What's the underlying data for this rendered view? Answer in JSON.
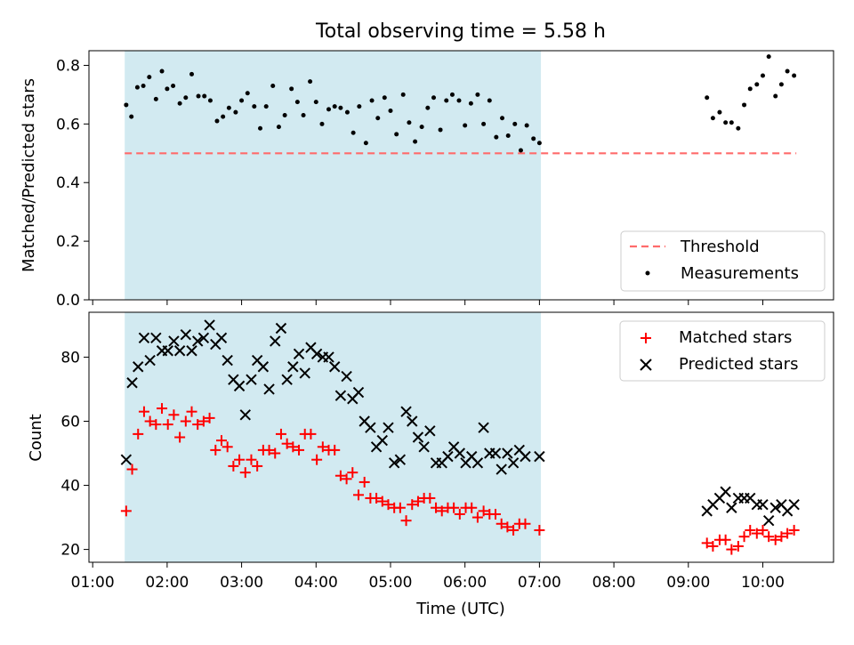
{
  "chart_data": [
    {
      "type": "scatter",
      "title": "Total observing time = 5.58 h",
      "ylabel": "Matched/Predicted stars",
      "xlabel": "",
      "ylim": [
        0,
        0.85
      ],
      "yticks": [
        "0.0",
        "0.2",
        "0.4",
        "0.6",
        "0.8"
      ],
      "xlim_hours": [
        0.95,
        10.95
      ],
      "shaded_range_hours": [
        1.43,
        7.02
      ],
      "shade_color": "#add8e6",
      "legend_position": "lower-right",
      "threshold": {
        "name": "Threshold",
        "value": 0.5,
        "x_range_hours": [
          1.43,
          10.45
        ],
        "color": "#ff6b6b",
        "style": "dashed"
      },
      "series": [
        {
          "name": "Measurements",
          "marker": "dot",
          "color": "#000000",
          "points": [
            [
              1.45,
              0.665
            ],
            [
              1.52,
              0.625
            ],
            [
              1.6,
              0.725
            ],
            [
              1.68,
              0.73
            ],
            [
              1.76,
              0.76
            ],
            [
              1.85,
              0.685
            ],
            [
              1.93,
              0.78
            ],
            [
              2.0,
              0.72
            ],
            [
              2.08,
              0.73
            ],
            [
              2.17,
              0.67
            ],
            [
              2.25,
              0.69
            ],
            [
              2.33,
              0.77
            ],
            [
              2.42,
              0.695
            ],
            [
              2.5,
              0.695
            ],
            [
              2.58,
              0.68
            ],
            [
              2.67,
              0.61
            ],
            [
              2.75,
              0.625
            ],
            [
              2.83,
              0.655
            ],
            [
              2.92,
              0.64
            ],
            [
              3.0,
              0.68
            ],
            [
              3.08,
              0.705
            ],
            [
              3.17,
              0.66
            ],
            [
              3.25,
              0.585
            ],
            [
              3.33,
              0.66
            ],
            [
              3.42,
              0.73
            ],
            [
              3.5,
              0.59
            ],
            [
              3.58,
              0.63
            ],
            [
              3.67,
              0.72
            ],
            [
              3.75,
              0.675
            ],
            [
              3.83,
              0.63
            ],
            [
              3.92,
              0.745
            ],
            [
              4.0,
              0.675
            ],
            [
              4.08,
              0.6
            ],
            [
              4.17,
              0.65
            ],
            [
              4.25,
              0.66
            ],
            [
              4.33,
              0.655
            ],
            [
              4.42,
              0.64
            ],
            [
              4.5,
              0.57
            ],
            [
              4.58,
              0.66
            ],
            [
              4.67,
              0.535
            ],
            [
              4.75,
              0.68
            ],
            [
              4.83,
              0.62
            ],
            [
              4.92,
              0.69
            ],
            [
              5.0,
              0.645
            ],
            [
              5.08,
              0.565
            ],
            [
              5.17,
              0.7
            ],
            [
              5.25,
              0.605
            ],
            [
              5.33,
              0.54
            ],
            [
              5.42,
              0.59
            ],
            [
              5.5,
              0.655
            ],
            [
              5.58,
              0.69
            ],
            [
              5.67,
              0.58
            ],
            [
              5.75,
              0.68
            ],
            [
              5.83,
              0.7
            ],
            [
              5.92,
              0.68
            ],
            [
              6.0,
              0.595
            ],
            [
              6.08,
              0.67
            ],
            [
              6.17,
              0.7
            ],
            [
              6.25,
              0.6
            ],
            [
              6.33,
              0.68
            ],
            [
              6.42,
              0.555
            ],
            [
              6.5,
              0.62
            ],
            [
              6.58,
              0.56
            ],
            [
              6.67,
              0.6
            ],
            [
              6.75,
              0.51
            ],
            [
              6.83,
              0.595
            ],
            [
              6.92,
              0.55
            ],
            [
              7.0,
              0.535
            ],
            [
              9.25,
              0.69
            ],
            [
              9.33,
              0.62
            ],
            [
              9.42,
              0.64
            ],
            [
              9.5,
              0.605
            ],
            [
              9.58,
              0.605
            ],
            [
              9.67,
              0.585
            ],
            [
              9.75,
              0.665
            ],
            [
              9.83,
              0.72
            ],
            [
              9.92,
              0.735
            ],
            [
              10.0,
              0.765
            ],
            [
              10.08,
              0.83
            ],
            [
              10.17,
              0.695
            ],
            [
              10.25,
              0.735
            ],
            [
              10.33,
              0.78
            ],
            [
              10.42,
              0.765
            ]
          ]
        }
      ]
    },
    {
      "type": "scatter",
      "title": "",
      "ylabel": "Count",
      "xlabel": "Time (UTC)",
      "ylim": [
        16,
        94
      ],
      "yticks": [
        "20",
        "40",
        "60",
        "80"
      ],
      "xlim_hours": [
        0.95,
        10.95
      ],
      "xticks": [
        "01:00",
        "02:00",
        "03:00",
        "04:00",
        "05:00",
        "06:00",
        "07:00",
        "08:00",
        "09:00",
        "10:00"
      ],
      "shaded_range_hours": [
        1.43,
        7.02
      ],
      "shade_color": "#add8e6",
      "legend_position": "top-right",
      "series": [
        {
          "name": "Matched stars",
          "marker": "plus",
          "color": "#ff0000",
          "points": [
            [
              1.45,
              32
            ],
            [
              1.53,
              45
            ],
            [
              1.61,
              56
            ],
            [
              1.69,
              63
            ],
            [
              1.77,
              60
            ],
            [
              1.85,
              59
            ],
            [
              1.93,
              64
            ],
            [
              2.01,
              59
            ],
            [
              2.09,
              62
            ],
            [
              2.17,
              55
            ],
            [
              2.25,
              60
            ],
            [
              2.33,
              63
            ],
            [
              2.41,
              59
            ],
            [
              2.49,
              60
            ],
            [
              2.57,
              61
            ],
            [
              2.65,
              51
            ],
            [
              2.73,
              54
            ],
            [
              2.81,
              52
            ],
            [
              2.89,
              46
            ],
            [
              2.97,
              48
            ],
            [
              3.05,
              44
            ],
            [
              3.13,
              48
            ],
            [
              3.21,
              46
            ],
            [
              3.29,
              51
            ],
            [
              3.37,
              51
            ],
            [
              3.45,
              50
            ],
            [
              3.53,
              56
            ],
            [
              3.61,
              53
            ],
            [
              3.69,
              52
            ],
            [
              3.77,
              51
            ],
            [
              3.85,
              56
            ],
            [
              3.93,
              56
            ],
            [
              4.01,
              48
            ],
            [
              4.09,
              52
            ],
            [
              4.17,
              51
            ],
            [
              4.25,
              51
            ],
            [
              4.33,
              43
            ],
            [
              4.41,
              42
            ],
            [
              4.49,
              44
            ],
            [
              4.57,
              37
            ],
            [
              4.65,
              41
            ],
            [
              4.73,
              36
            ],
            [
              4.81,
              36
            ],
            [
              4.89,
              35
            ],
            [
              4.97,
              34
            ],
            [
              5.05,
              33
            ],
            [
              5.13,
              33
            ],
            [
              5.21,
              29
            ],
            [
              5.29,
              34
            ],
            [
              5.37,
              35
            ],
            [
              5.45,
              36
            ],
            [
              5.53,
              36
            ],
            [
              5.61,
              33
            ],
            [
              5.69,
              32
            ],
            [
              5.77,
              33
            ],
            [
              5.85,
              33
            ],
            [
              5.93,
              31
            ],
            [
              6.01,
              33
            ],
            [
              6.09,
              33
            ],
            [
              6.17,
              30
            ],
            [
              6.25,
              32
            ],
            [
              6.33,
              31
            ],
            [
              6.41,
              31
            ],
            [
              6.49,
              28
            ],
            [
              6.57,
              27
            ],
            [
              6.65,
              26
            ],
            [
              6.73,
              28
            ],
            [
              6.81,
              28
            ],
            [
              7.0,
              26
            ],
            [
              9.25,
              22
            ],
            [
              9.33,
              21
            ],
            [
              9.42,
              23
            ],
            [
              9.5,
              23
            ],
            [
              9.58,
              20
            ],
            [
              9.67,
              21
            ],
            [
              9.75,
              24
            ],
            [
              9.83,
              26
            ],
            [
              9.92,
              25
            ],
            [
              10.0,
              26
            ],
            [
              10.08,
              24
            ],
            [
              10.17,
              23
            ],
            [
              10.25,
              24
            ],
            [
              10.33,
              25
            ],
            [
              10.42,
              26
            ]
          ]
        },
        {
          "name": "Predicted stars",
          "marker": "x",
          "color": "#000000",
          "points": [
            [
              1.45,
              48
            ],
            [
              1.53,
              72
            ],
            [
              1.61,
              77
            ],
            [
              1.69,
              86
            ],
            [
              1.77,
              79
            ],
            [
              1.85,
              86
            ],
            [
              1.93,
              82
            ],
            [
              2.01,
              82
            ],
            [
              2.09,
              85
            ],
            [
              2.17,
              82
            ],
            [
              2.25,
              87
            ],
            [
              2.33,
              82
            ],
            [
              2.41,
              85
            ],
            [
              2.49,
              86
            ],
            [
              2.57,
              90
            ],
            [
              2.65,
              84
            ],
            [
              2.73,
              86
            ],
            [
              2.81,
              79
            ],
            [
              2.89,
              73
            ],
            [
              2.97,
              71
            ],
            [
              3.05,
              62
            ],
            [
              3.13,
              73
            ],
            [
              3.21,
              79
            ],
            [
              3.29,
              77
            ],
            [
              3.37,
              70
            ],
            [
              3.45,
              85
            ],
            [
              3.53,
              89
            ],
            [
              3.61,
              73
            ],
            [
              3.69,
              77
            ],
            [
              3.77,
              81
            ],
            [
              3.85,
              75
            ],
            [
              3.93,
              83
            ],
            [
              4.01,
              81
            ],
            [
              4.09,
              80
            ],
            [
              4.17,
              80
            ],
            [
              4.25,
              77
            ],
            [
              4.33,
              68
            ],
            [
              4.41,
              74
            ],
            [
              4.49,
              67
            ],
            [
              4.57,
              69
            ],
            [
              4.65,
              60
            ],
            [
              4.73,
              58
            ],
            [
              4.81,
              52
            ],
            [
              4.89,
              54
            ],
            [
              4.97,
              58
            ],
            [
              5.05,
              47
            ],
            [
              5.13,
              48
            ],
            [
              5.21,
              63
            ],
            [
              5.29,
              60
            ],
            [
              5.37,
              55
            ],
            [
              5.45,
              52
            ],
            [
              5.53,
              57
            ],
            [
              5.61,
              47
            ],
            [
              5.69,
              47
            ],
            [
              5.77,
              49
            ],
            [
              5.85,
              52
            ],
            [
              5.93,
              50
            ],
            [
              6.01,
              47
            ],
            [
              6.09,
              49
            ],
            [
              6.17,
              47
            ],
            [
              6.25,
              58
            ],
            [
              6.33,
              50
            ],
            [
              6.41,
              50
            ],
            [
              6.49,
              45
            ],
            [
              6.57,
              50
            ],
            [
              6.65,
              47
            ],
            [
              6.73,
              51
            ],
            [
              6.81,
              49
            ],
            [
              7.0,
              49
            ],
            [
              9.25,
              32
            ],
            [
              9.33,
              34
            ],
            [
              9.42,
              36
            ],
            [
              9.5,
              38
            ],
            [
              9.58,
              33
            ],
            [
              9.67,
              36
            ],
            [
              9.75,
              36
            ],
            [
              9.83,
              36
            ],
            [
              9.92,
              34
            ],
            [
              10.0,
              34
            ],
            [
              10.08,
              29
            ],
            [
              10.17,
              33
            ],
            [
              10.25,
              34
            ],
            [
              10.33,
              32
            ],
            [
              10.42,
              34
            ]
          ]
        }
      ]
    }
  ]
}
